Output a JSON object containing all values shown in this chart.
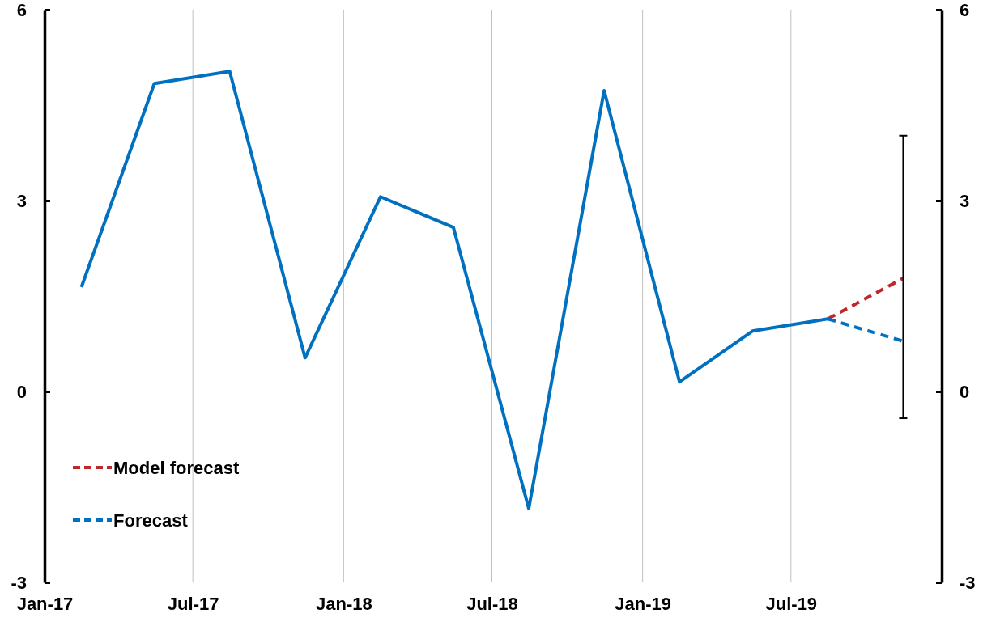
{
  "chart_data": {
    "type": "line",
    "x": [
      "2017-02-15",
      "2017-05-15",
      "2017-08-15",
      "2017-11-15",
      "2018-02-15",
      "2018-05-15",
      "2018-08-15",
      "2018-11-15",
      "2019-02-15",
      "2019-05-15",
      "2019-08-15"
    ],
    "series": [
      {
        "color": "#0070c0",
        "line_style": "solid",
        "values": [
          1.64,
          4.84,
          5.03,
          0.53,
          3.06,
          2.58,
          -1.84,
          4.73,
          0.15,
          0.95,
          1.14
        ]
      },
      {
        "name": "Model forecast",
        "color": "#c0272d",
        "line_style": "dashed",
        "x": [
          "2019-08-15",
          "2019-11-15"
        ],
        "values": [
          1.14,
          1.78
        ],
        "errors": [
          null,
          [
            -0.42,
            4.02
          ]
        ]
      },
      {
        "name": "Forecast",
        "color": "#0070c0",
        "line_style": "dashed",
        "x": [
          "2019-08-15",
          "2019-11-15"
        ],
        "values": [
          1.14,
          0.79
        ]
      }
    ],
    "xlim": [
      "2017-01-01",
      "2020-01-01"
    ],
    "xticks": [
      {
        "value": "2017-01",
        "label": "Jan-17"
      },
      {
        "value": "2017-07",
        "label": "Jul-17"
      },
      {
        "value": "2018-01",
        "label": "Jan-18"
      },
      {
        "value": "2018-07",
        "label": "Jul-18"
      },
      {
        "value": "2019-01",
        "label": "Jan-19"
      },
      {
        "value": "2019-07",
        "label": "Jul-19"
      }
    ],
    "ylim": [
      -3,
      6
    ],
    "yticks": [
      -3,
      0,
      3,
      6
    ],
    "y2lim": [
      -3,
      6
    ],
    "y2ticks": [
      -3,
      0,
      3,
      6
    ],
    "grid": "x",
    "legend": "bottom left",
    "marker": "none"
  }
}
